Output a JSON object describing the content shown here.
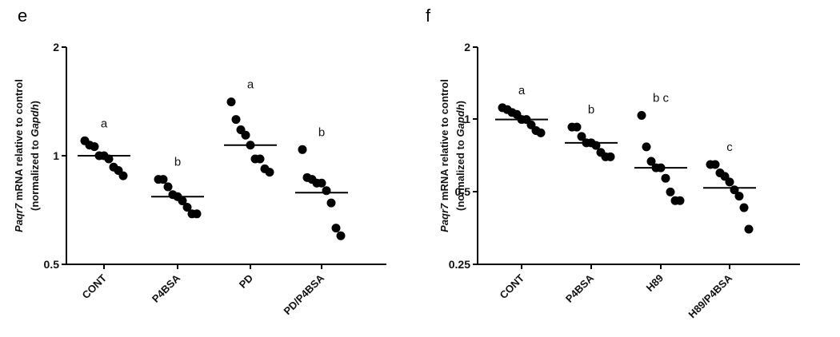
{
  "chart_data": [
    {
      "panel": "e",
      "type": "scatter",
      "y_scale": "log",
      "ylim": [
        0.5,
        2
      ],
      "yticks": [
        "2",
        "1",
        "0.5"
      ],
      "ylabel_line1": [
        "Paqr7",
        " mRNA relative to control"
      ],
      "ylabel_line2": [
        "(normalized to ",
        "Gapdh",
        ")"
      ],
      "categories": [
        "CONT",
        "P4BSA",
        "PD",
        "PD/P4BSA"
      ],
      "sig_letters": [
        "a",
        "b",
        "a",
        "b"
      ],
      "means": [
        1.0,
        0.77,
        1.07,
        0.79
      ],
      "points": [
        [
          1.1,
          1.07,
          1.06,
          1.0,
          1.0,
          0.98,
          0.93,
          0.91,
          0.88
        ],
        [
          0.86,
          0.86,
          0.82,
          0.78,
          0.77,
          0.75,
          0.72,
          0.69,
          0.69
        ],
        [
          1.41,
          1.26,
          1.18,
          1.14,
          1.07,
          0.98,
          0.98,
          0.92,
          0.9
        ],
        [
          1.04,
          0.87,
          0.86,
          0.84,
          0.84,
          0.8,
          0.74,
          0.63,
          0.6
        ]
      ]
    },
    {
      "panel": "f",
      "type": "scatter",
      "y_scale": "log",
      "ylim": [
        0.25,
        2
      ],
      "yticks": [
        "2",
        "1",
        "0.5",
        "0.25"
      ],
      "ylabel_line1": [
        "Paqr7",
        " mRNA relative to control"
      ],
      "ylabel_line2": [
        "(normalized to ",
        "Gapdh",
        ")"
      ],
      "categories": [
        "CONT",
        "P4BSA",
        "H89",
        "H89/P4BSA"
      ],
      "sig_letters": [
        "a",
        "b",
        "b c",
        "c"
      ],
      "means": [
        1.0,
        0.8,
        0.63,
        0.52
      ],
      "points": [
        [
          1.12,
          1.1,
          1.07,
          1.05,
          1.0,
          1.0,
          0.95,
          0.9,
          0.88
        ],
        [
          0.93,
          0.93,
          0.85,
          0.8,
          0.8,
          0.78,
          0.73,
          0.7,
          0.7
        ],
        [
          1.04,
          0.77,
          0.67,
          0.63,
          0.63,
          0.57,
          0.5,
          0.46,
          0.46
        ],
        [
          0.65,
          0.65,
          0.6,
          0.58,
          0.55,
          0.51,
          0.48,
          0.43,
          0.35
        ]
      ]
    }
  ]
}
